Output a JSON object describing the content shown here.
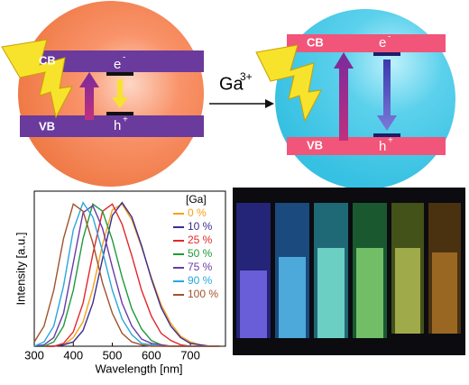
{
  "diagram": {
    "left": {
      "cb": "CB",
      "vb": "VB",
      "electron": "e",
      "electron_sign": "-",
      "hole": "h",
      "hole_sign": "+"
    },
    "right": {
      "cb": "CB",
      "vb": "VB",
      "electron": "e",
      "electron_sign": "-",
      "hole": "h",
      "hole_sign": "+"
    },
    "arrow_label": "Ga",
    "arrow_label_sup": "3+"
  },
  "chart_data": {
    "type": "line",
    "xlabel": "Wavelength [nm]",
    "ylabel": "Intensity [a.u.]",
    "legend_title": "[Ga]",
    "legend": "top-right",
    "x": [
      300,
      325,
      350,
      375,
      400,
      425,
      450,
      475,
      500,
      525,
      550,
      575,
      600,
      625,
      650,
      675,
      700,
      725,
      750,
      775
    ],
    "xlim": [
      300,
      790
    ],
    "xticks": [
      300,
      400,
      500,
      600,
      700
    ],
    "ylim": [
      0,
      1.08
    ],
    "series": [
      {
        "name": "0 %",
        "color": "#f7a11a",
        "values": [
          0,
          0,
          0,
          0.01,
          0.06,
          0.17,
          0.4,
          0.71,
          0.95,
          0.99,
          0.88,
          0.69,
          0.48,
          0.29,
          0.16,
          0.07,
          0.03,
          0.01,
          0,
          0
        ]
      },
      {
        "name": "10 %",
        "color": "#3a2d8f",
        "values": [
          0,
          0,
          0,
          0.01,
          0.03,
          0.11,
          0.3,
          0.61,
          0.91,
          1,
          0.9,
          0.7,
          0.47,
          0.27,
          0.14,
          0.06,
          0.02,
          0.01,
          0,
          0
        ]
      },
      {
        "name": "25 %",
        "color": "#e3262a",
        "values": [
          0,
          0,
          0,
          0.02,
          0.1,
          0.3,
          0.64,
          0.94,
          0.99,
          0.85,
          0.63,
          0.39,
          0.21,
          0.09,
          0.04,
          0.01,
          0,
          0,
          0,
          0
        ]
      },
      {
        "name": "50 %",
        "color": "#1e9a3a",
        "values": [
          0,
          0,
          0.03,
          0.14,
          0.39,
          0.75,
          0.99,
          0.94,
          0.74,
          0.48,
          0.26,
          0.12,
          0.04,
          0.01,
          0,
          0,
          0,
          0,
          0,
          0
        ]
      },
      {
        "name": "75 %",
        "color": "#6a3aa8",
        "values": [
          0,
          0.01,
          0.06,
          0.23,
          0.58,
          0.93,
          0.98,
          0.82,
          0.55,
          0.3,
          0.14,
          0.05,
          0.02,
          0.01,
          0,
          0,
          0,
          0,
          0,
          0
        ]
      },
      {
        "name": "90 %",
        "color": "#2aa6dc",
        "values": [
          0,
          0.03,
          0.14,
          0.42,
          0.81,
          1,
          0.9,
          0.66,
          0.39,
          0.19,
          0.08,
          0.02,
          0.01,
          0,
          0,
          0,
          0,
          0,
          0,
          0
        ]
      },
      {
        "name": "100 %",
        "color": "#a0522d",
        "values": [
          0.03,
          0.14,
          0.39,
          0.75,
          0.99,
          0.94,
          0.72,
          0.44,
          0.23,
          0.09,
          0.03,
          0.01,
          0,
          0,
          0,
          0,
          0,
          0,
          0,
          0
        ]
      }
    ]
  }
}
